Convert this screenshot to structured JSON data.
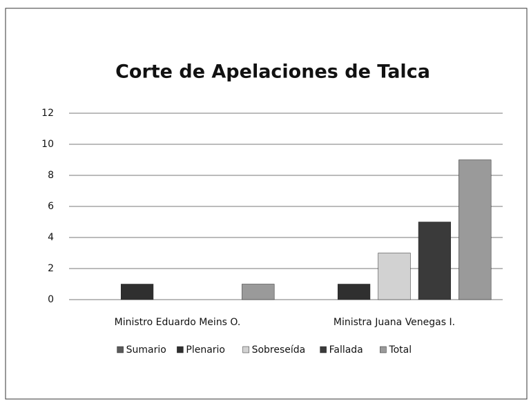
{
  "chart_data": {
    "type": "bar",
    "title": "Corte de Apelaciones de Talca",
    "categories": [
      "Ministro Eduardo Meins O.",
      "Ministra Juana Venegas I."
    ],
    "series": [
      {
        "name": "Sumario",
        "color": "#5a5a5a",
        "values": [
          0,
          0
        ]
      },
      {
        "name": "Plenario",
        "color": "#2f2f2f",
        "values": [
          1,
          1
        ]
      },
      {
        "name": "Sobreseída",
        "color": "#d2d2d2",
        "values": [
          0,
          3
        ]
      },
      {
        "name": "Fallada",
        "color": "#3a3a3a",
        "values": [
          0,
          5
        ]
      },
      {
        "name": "Total",
        "color": "#9a9a9a",
        "values": [
          1,
          9
        ]
      }
    ],
    "ylim": [
      0,
      12
    ],
    "yticks": [
      0,
      2,
      4,
      6,
      8,
      10,
      12
    ],
    "grid": true,
    "legend": "bottom"
  }
}
